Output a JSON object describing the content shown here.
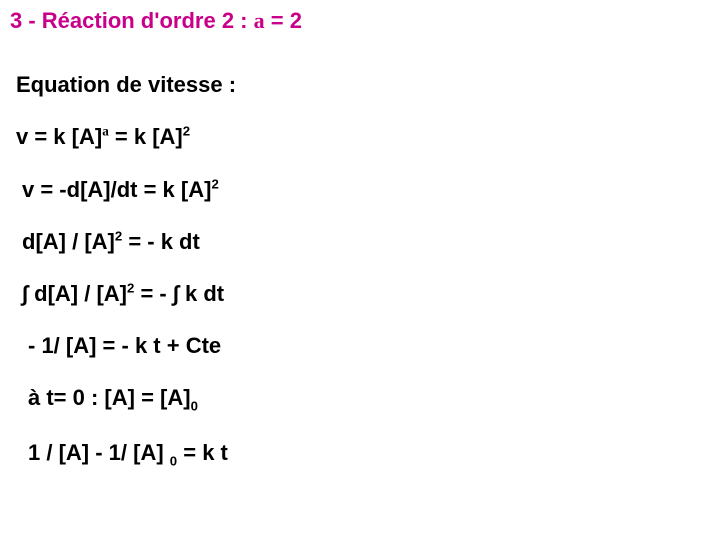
{
  "doc": {
    "title_color": "#c8008a",
    "text_color": "#000000",
    "background_color": "#ffffff",
    "font_family": "Arial",
    "title_fontsize": 22,
    "line_fontsize": 22,
    "title": "3 - Réaction d'ordre 2 : α  = 2",
    "lines": [
      "Equation de vitesse :",
      "v = k [A]^α = k [A]^2",
      "v = -d[A]/dt = k [A]^2",
      "d[A] / [A]^2 = - k dt",
      "∫ d[A] / [A]^2 = - ∫ k dt",
      "- 1/ [A] = - k t + Cte",
      "à t= 0 : [A] = [A]_0",
      "1 / [A] - 1/ [A] _0 = k t"
    ]
  }
}
